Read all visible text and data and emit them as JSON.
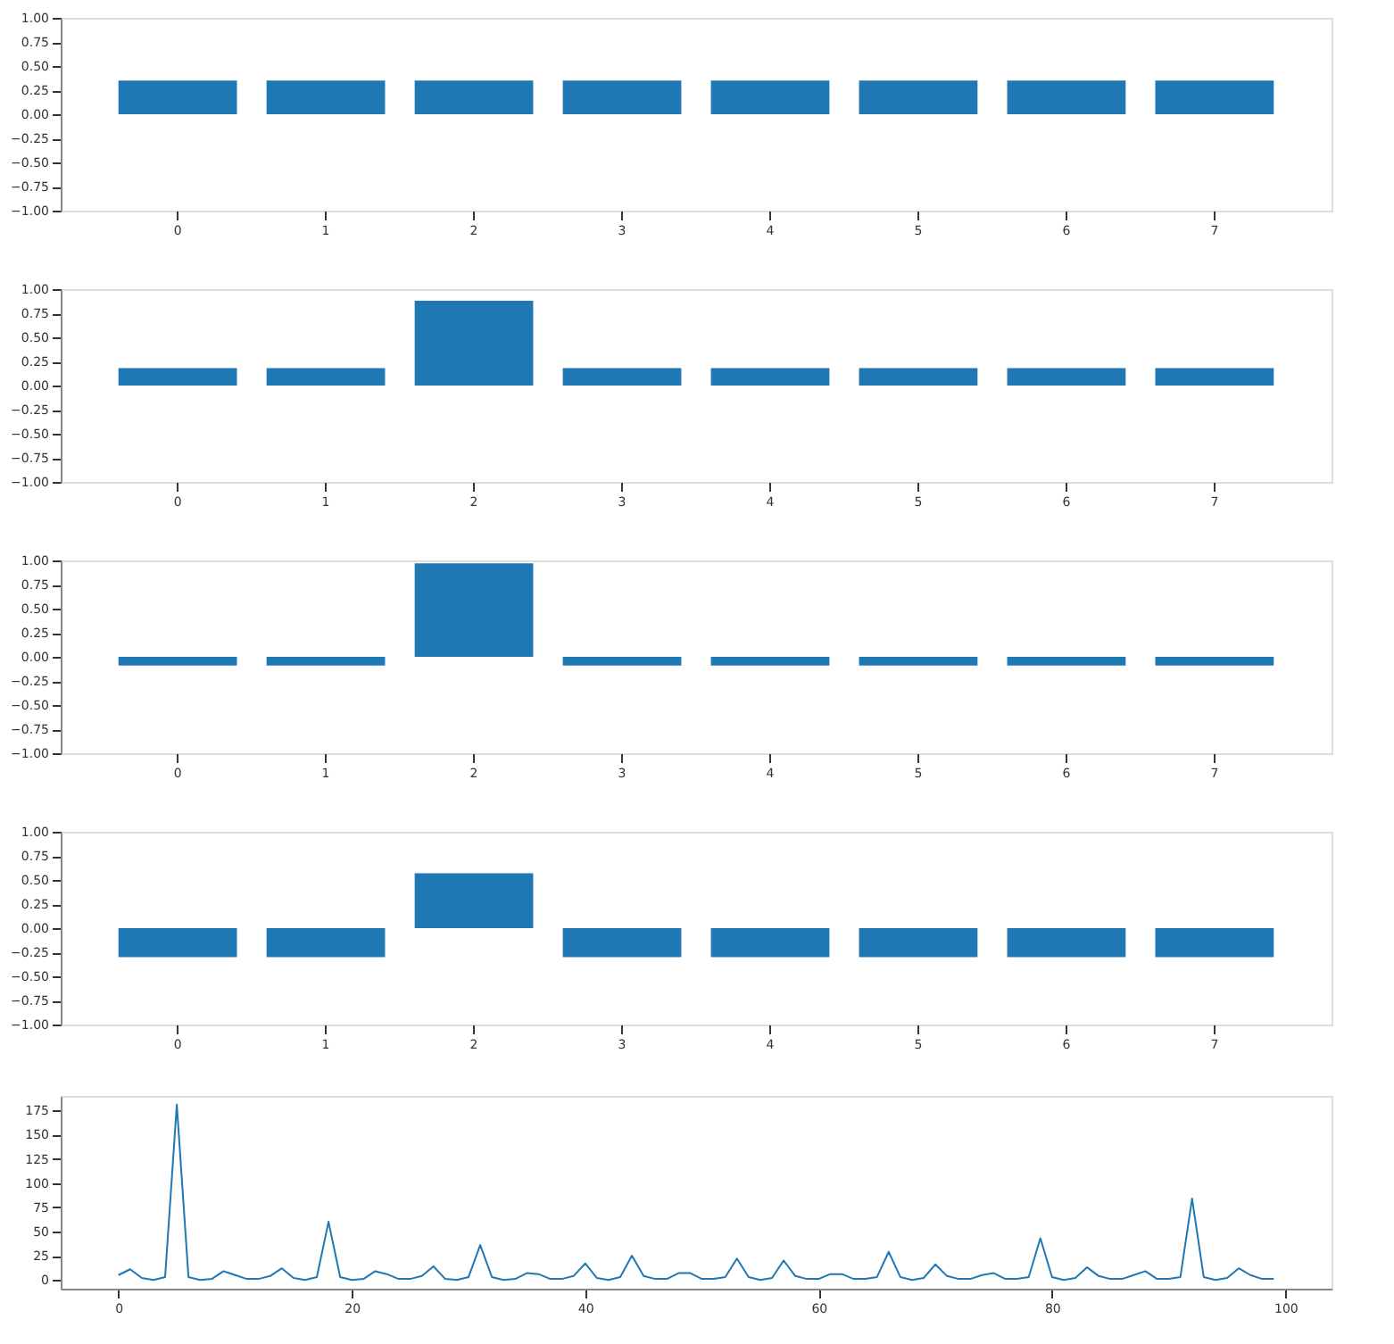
{
  "chart_data": [
    {
      "type": "bar",
      "categories": [
        "0",
        "1",
        "2",
        "3",
        "4",
        "5",
        "6",
        "7"
      ],
      "values": [
        0.35,
        0.35,
        0.35,
        0.35,
        0.35,
        0.35,
        0.35,
        0.35
      ],
      "color": "#1f77b4",
      "ylim": [
        -1,
        1
      ],
      "yticks": [
        {
          "value": -1,
          "label": "−1.00"
        },
        {
          "value": -0.75,
          "label": "−0.75"
        },
        {
          "value": -0.5,
          "label": "−0.50"
        },
        {
          "value": -0.25,
          "label": "−0.25"
        },
        {
          "value": 0,
          "label": "0.00"
        },
        {
          "value": 0.25,
          "label": "0.25"
        },
        {
          "value": 0.5,
          "label": "0.50"
        },
        {
          "value": 0.75,
          "label": "0.75"
        },
        {
          "value": 1,
          "label": "1.00"
        }
      ],
      "grid": false
    },
    {
      "type": "bar",
      "categories": [
        "0",
        "1",
        "2",
        "3",
        "4",
        "5",
        "6",
        "7"
      ],
      "values": [
        0.18,
        0.18,
        0.88,
        0.18,
        0.18,
        0.18,
        0.18,
        0.18
      ],
      "color": "#1f77b4",
      "ylim": [
        -1,
        1
      ],
      "yticks": [
        {
          "value": -1,
          "label": "−1.00"
        },
        {
          "value": -0.75,
          "label": "−0.75"
        },
        {
          "value": -0.5,
          "label": "−0.50"
        },
        {
          "value": -0.25,
          "label": "−0.25"
        },
        {
          "value": 0,
          "label": "0.00"
        },
        {
          "value": 0.25,
          "label": "0.25"
        },
        {
          "value": 0.5,
          "label": "0.50"
        },
        {
          "value": 0.75,
          "label": "0.75"
        },
        {
          "value": 1,
          "label": "1.00"
        }
      ],
      "grid": false
    },
    {
      "type": "bar",
      "categories": [
        "0",
        "1",
        "2",
        "3",
        "4",
        "5",
        "6",
        "7"
      ],
      "values": [
        -0.09,
        -0.09,
        0.97,
        -0.09,
        -0.09,
        -0.09,
        -0.09,
        -0.09
      ],
      "color": "#1f77b4",
      "ylim": [
        -1,
        1
      ],
      "yticks": [
        {
          "value": -1,
          "label": "−1.00"
        },
        {
          "value": -0.75,
          "label": "−0.75"
        },
        {
          "value": -0.5,
          "label": "−0.50"
        },
        {
          "value": -0.25,
          "label": "−0.25"
        },
        {
          "value": 0,
          "label": "0.00"
        },
        {
          "value": 0.25,
          "label": "0.25"
        },
        {
          "value": 0.5,
          "label": "0.50"
        },
        {
          "value": 0.75,
          "label": "0.75"
        },
        {
          "value": 1,
          "label": "1.00"
        }
      ],
      "grid": false
    },
    {
      "type": "bar",
      "categories": [
        "0",
        "1",
        "2",
        "3",
        "4",
        "5",
        "6",
        "7"
      ],
      "values": [
        -0.3,
        -0.3,
        0.57,
        -0.3,
        -0.3,
        -0.3,
        -0.3,
        -0.3
      ],
      "color": "#1f77b4",
      "ylim": [
        -1,
        1
      ],
      "yticks": [
        {
          "value": -1,
          "label": "−1.00"
        },
        {
          "value": -0.75,
          "label": "−0.75"
        },
        {
          "value": -0.5,
          "label": "−0.50"
        },
        {
          "value": -0.25,
          "label": "−0.25"
        },
        {
          "value": 0,
          "label": "0.00"
        },
        {
          "value": 0.25,
          "label": "0.25"
        },
        {
          "value": 0.5,
          "label": "0.50"
        },
        {
          "value": 0.75,
          "label": "0.75"
        },
        {
          "value": 1,
          "label": "1.00"
        }
      ],
      "grid": false
    },
    {
      "type": "line",
      "x": [
        0,
        1,
        2,
        3,
        4,
        5,
        6,
        7,
        8,
        9,
        10,
        11,
        12,
        13,
        14,
        15,
        16,
        17,
        18,
        19,
        20,
        21,
        22,
        23,
        24,
        25,
        26,
        27,
        28,
        29,
        30,
        31,
        32,
        33,
        34,
        35,
        36,
        37,
        38,
        39,
        40,
        41,
        42,
        43,
        44,
        45,
        46,
        47,
        48,
        49,
        50,
        51,
        52,
        53,
        54,
        55,
        56,
        57,
        58,
        59,
        60,
        61,
        62,
        63,
        64,
        65,
        66,
        67,
        68,
        69,
        70,
        71,
        72,
        73,
        74,
        75,
        76,
        77,
        78,
        79,
        80,
        81,
        82,
        83,
        84,
        85,
        86,
        87,
        88,
        89,
        90,
        91,
        92,
        93,
        94,
        95,
        96,
        97,
        98,
        99
      ],
      "values": [
        5,
        11,
        2,
        0,
        3,
        181,
        3,
        0,
        1,
        9,
        5,
        1,
        1,
        4,
        12,
        2,
        0,
        3,
        60,
        3,
        0,
        1,
        9,
        6,
        1,
        1,
        4,
        14,
        1,
        0,
        3,
        36,
        3,
        0,
        1,
        7,
        6,
        1,
        1,
        4,
        17,
        2,
        0,
        3,
        25,
        4,
        1,
        1,
        7,
        7,
        1,
        1,
        3,
        22,
        3,
        0,
        2,
        20,
        4,
        1,
        1,
        6,
        6,
        1,
        1,
        3,
        29,
        3,
        0,
        2,
        16,
        4,
        1,
        1,
        5,
        7,
        1,
        1,
        3,
        43,
        3,
        0,
        2,
        13,
        4,
        1,
        1,
        5,
        9,
        1,
        1,
        3,
        84,
        3,
        0,
        2,
        12,
        5,
        1,
        1
      ],
      "color": "#1f77b4",
      "xlim": [
        -4.95,
        103.95
      ],
      "xticks": [
        0,
        20,
        40,
        60,
        80,
        100
      ],
      "ylim": [
        -9.05,
        190.05
      ],
      "yticks": [
        0,
        25,
        50,
        75,
        100,
        125,
        150,
        175
      ],
      "grid": false,
      "marker": "none",
      "line_style": "solid"
    }
  ]
}
